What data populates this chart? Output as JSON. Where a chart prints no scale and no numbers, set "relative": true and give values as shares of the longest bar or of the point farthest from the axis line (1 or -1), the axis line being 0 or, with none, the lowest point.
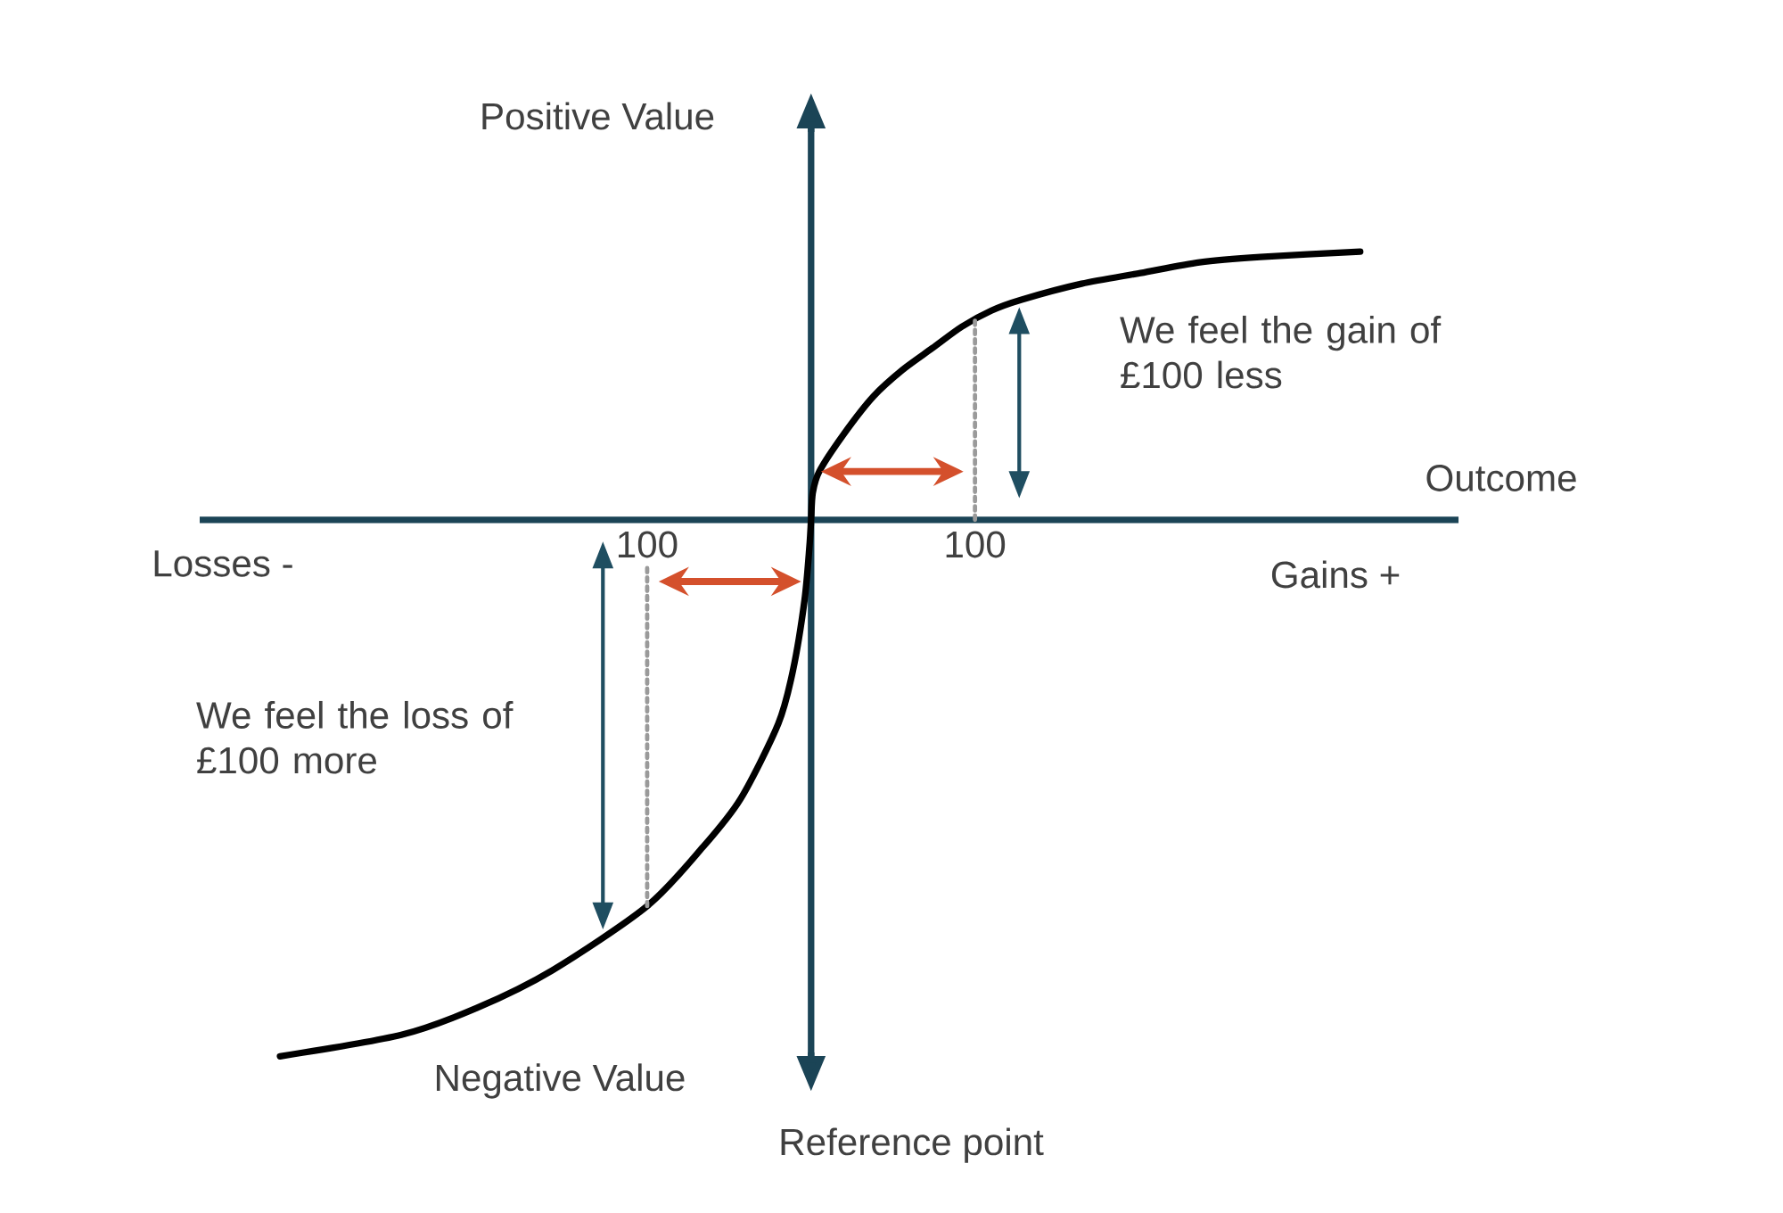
{
  "chart_data": {
    "type": "line",
    "xlabel": "Outcome",
    "ylabel": "Positive Value",
    "annotations": [
      "Losses -",
      "Gains +",
      "Negative Value",
      "Reference point",
      "We feel the gain of £100 less",
      "We feel the loss of £100 more"
    ],
    "x": [
      -324,
      -250,
      -204,
      -158,
      -100,
      -66,
      -43,
      -20,
      -11,
      -4,
      -1,
      0,
      1,
      5,
      20,
      38,
      56,
      74,
      92,
      110,
      128,
      165,
      201,
      237,
      274,
      335
    ],
    "series": [
      {
        "color": "#000000",
        "values": [
          -1.0,
          -0.96,
          -0.91,
          -0.84,
          -0.72,
          -0.61,
          -0.52,
          -0.38,
          -0.28,
          -0.15,
          -0.05,
          0,
          0.05,
          0.09,
          0.16,
          0.23,
          0.28,
          0.32,
          0.36,
          0.39,
          0.41,
          0.44,
          0.46,
          0.48,
          0.49,
          0.5
        ]
      }
    ],
    "ref_lines": [
      {
        "axis": "x",
        "value": 100,
        "color": "#9a9a9a",
        "line_style": "dotted"
      },
      {
        "axis": "x",
        "value": -100,
        "color": "#9a9a9a",
        "line_style": "dotted"
      }
    ],
    "relative": true,
    "xlim": [
      -373,
      395
    ],
    "xticks": [
      {
        "value": -100,
        "label": "100"
      },
      100
    ]
  }
}
